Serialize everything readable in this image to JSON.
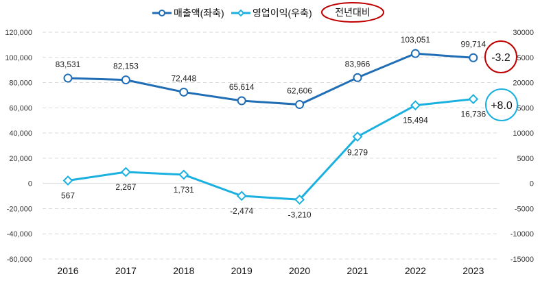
{
  "chart_data": {
    "type": "line",
    "title": "",
    "categories": [
      "2016",
      "2017",
      "2018",
      "2019",
      "2020",
      "2021",
      "2022",
      "2023"
    ],
    "series": [
      {
        "name": "매출액(좌축)",
        "axis": "left",
        "color": "#1f6db5",
        "marker": "circle",
        "values": [
          83531,
          82153,
          72448,
          65614,
          62606,
          83966,
          103051,
          99714
        ],
        "labels": [
          "83,531",
          "82,153",
          "72,448",
          "65,614",
          "62,606",
          "83,966",
          "103,051",
          "99,714"
        ]
      },
      {
        "name": "영업이익(우축)",
        "axis": "right",
        "color": "#1ab0e0",
        "marker": "diamond",
        "values": [
          567,
          2267,
          1731,
          -2474,
          -3210,
          9279,
          15494,
          16736
        ],
        "labels": [
          "567",
          "2,267",
          "1,731",
          "-2,474",
          "-3,210",
          "9,279",
          "15,494",
          "16,736"
        ]
      }
    ],
    "y_left": {
      "range": [
        -60000,
        120000
      ],
      "ticks": [
        120000,
        100000,
        80000,
        60000,
        40000,
        20000,
        0,
        -20000,
        -40000,
        -60000
      ],
      "tick_labels": [
        "120,000",
        "100,000",
        "80,000",
        "60,000",
        "40,000",
        "20,000",
        "0",
        "-20,000",
        "-40,000",
        "-60,000"
      ]
    },
    "y_right": {
      "range": [
        -15000,
        30000
      ],
      "ticks": [
        30000,
        25000,
        20000,
        15000,
        10000,
        5000,
        0,
        -5000,
        -10000,
        -15000
      ],
      "tick_labels": [
        "30000",
        "25000",
        "20000",
        "15000",
        "10000",
        "5000",
        "0",
        "-5000",
        "-10000",
        "-15000"
      ]
    },
    "grid": true,
    "legend": {
      "placement": "top-center",
      "extra_label": "전년대비"
    },
    "annotations": [
      {
        "text": "-3.2",
        "series": "매출액(좌축)",
        "color": "#c00000"
      },
      {
        "text": "+8.0",
        "series": "영업이익(우축)",
        "color": "#1ab0e0"
      }
    ]
  }
}
